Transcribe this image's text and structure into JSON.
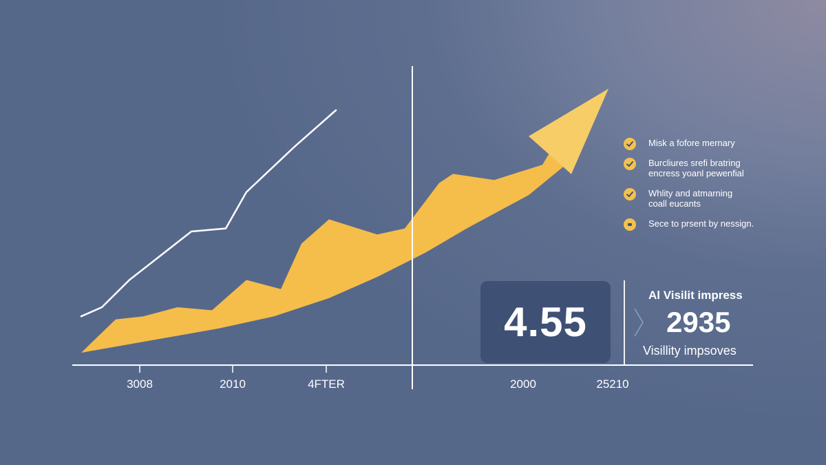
{
  "chart_data": {
    "type": "area",
    "title": "",
    "xlabel": "",
    "ylabel": "",
    "x_tick_labels": [
      "3008",
      "2010",
      "4FTER",
      "2000",
      "25210"
    ],
    "series": [
      {
        "kind": "line",
        "color": "#ffffff",
        "x": [
          0,
          3,
          7,
          16,
          21,
          24,
          31,
          37
        ],
        "y": [
          1.2,
          1.5,
          2.4,
          4.0,
          4.1,
          5.3,
          6.8,
          8.0
        ]
      },
      {
        "kind": "area-upper",
        "color": "#f5bd4a",
        "x": [
          0,
          5,
          9,
          14,
          19,
          24,
          29,
          32,
          36,
          43,
          47,
          52,
          54,
          60,
          67,
          72
        ],
        "y": [
          0,
          1.1,
          1.2,
          1.5,
          1.4,
          2.4,
          2.1,
          3.6,
          4.4,
          3.9,
          4.1,
          5.6,
          5.9,
          5.7,
          6.2,
          8.1
        ]
      },
      {
        "kind": "area-lower",
        "color": "#f5bd4a",
        "x": [
          0,
          10,
          20,
          28,
          36,
          43,
          50,
          56,
          65,
          72
        ],
        "y": [
          0,
          0.4,
          0.8,
          1.2,
          1.8,
          2.5,
          3.3,
          4.1,
          5.2,
          6.5
        ]
      }
    ],
    "grid": false,
    "legend_position": "right"
  },
  "legend": [
    {
      "icon": "check-icon",
      "text": "Misk a fofore mernary"
    },
    {
      "icon": "check-icon",
      "text": "Burcliures srefi bratring\nencress yoanl pewenfial"
    },
    {
      "icon": "check-icon",
      "text": "Whlity and atmarning\ncoall eucants"
    },
    {
      "icon": "dot-icon",
      "text": "Sece to prsent by nessign."
    }
  ],
  "kpi": {
    "value": "4.55",
    "title": "Al Visilit impress",
    "number": "2935",
    "subtitle": "Visillity impsoves"
  },
  "colors": {
    "accent": "#f5bd4a",
    "line": "#ffffff",
    "box": "#3f5075"
  }
}
